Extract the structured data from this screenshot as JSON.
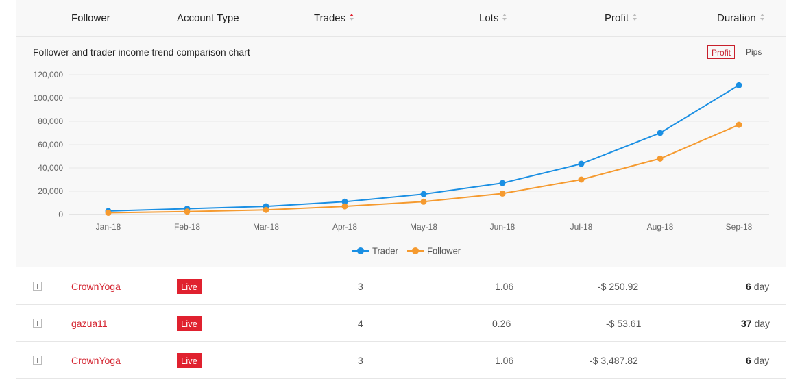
{
  "table": {
    "headers": {
      "follower": "Follower",
      "account_type": "Account Type",
      "trades": "Trades",
      "lots": "Lots",
      "profit": "Profit",
      "duration": "Duration"
    },
    "rows": [
      {
        "name": "CrownYoga",
        "type": "Live",
        "trades": "3",
        "lots": "1.06",
        "profit": "-$ 250.92",
        "duration_num": "6",
        "duration_unit": "day"
      },
      {
        "name": "gazua11",
        "type": "Live",
        "trades": "4",
        "lots": "0.26",
        "profit": "-$ 53.61",
        "duration_num": "37",
        "duration_unit": "day"
      },
      {
        "name": "CrownYoga",
        "type": "Live",
        "trades": "3",
        "lots": "1.06",
        "profit": "-$ 3,487.82",
        "duration_num": "6",
        "duration_unit": "day"
      }
    ]
  },
  "chart_panel": {
    "title": "Follower and trader income trend comparison chart",
    "toggle_profit": "Profit",
    "toggle_pips": "Pips",
    "active_toggle": "Profit"
  },
  "chart_data": {
    "type": "line",
    "categories": [
      "Jan-18",
      "Feb-18",
      "Mar-18",
      "Apr-18",
      "May-18",
      "Jun-18",
      "Jul-18",
      "Aug-18",
      "Sep-18"
    ],
    "ylim": [
      0,
      120000
    ],
    "yticks": [
      0,
      20000,
      40000,
      60000,
      80000,
      100000,
      120000
    ],
    "ytick_labels": [
      "0",
      "20,000",
      "40,000",
      "60,000",
      "80,000",
      "100,000",
      "120,000"
    ],
    "grid": true,
    "legend_position": "bottom",
    "series": [
      {
        "name": "Trader",
        "color": "#1a8fe3",
        "values": [
          3000,
          5000,
          7000,
          11000,
          17500,
          27000,
          43500,
          70000,
          111000
        ]
      },
      {
        "name": "Follower",
        "color": "#f59a2f",
        "values": [
          1500,
          2500,
          4000,
          7000,
          11000,
          18000,
          30000,
          48000,
          77000
        ]
      }
    ]
  },
  "colors": {
    "accent_red": "#e0212f",
    "sort_active": "#e0212f"
  }
}
